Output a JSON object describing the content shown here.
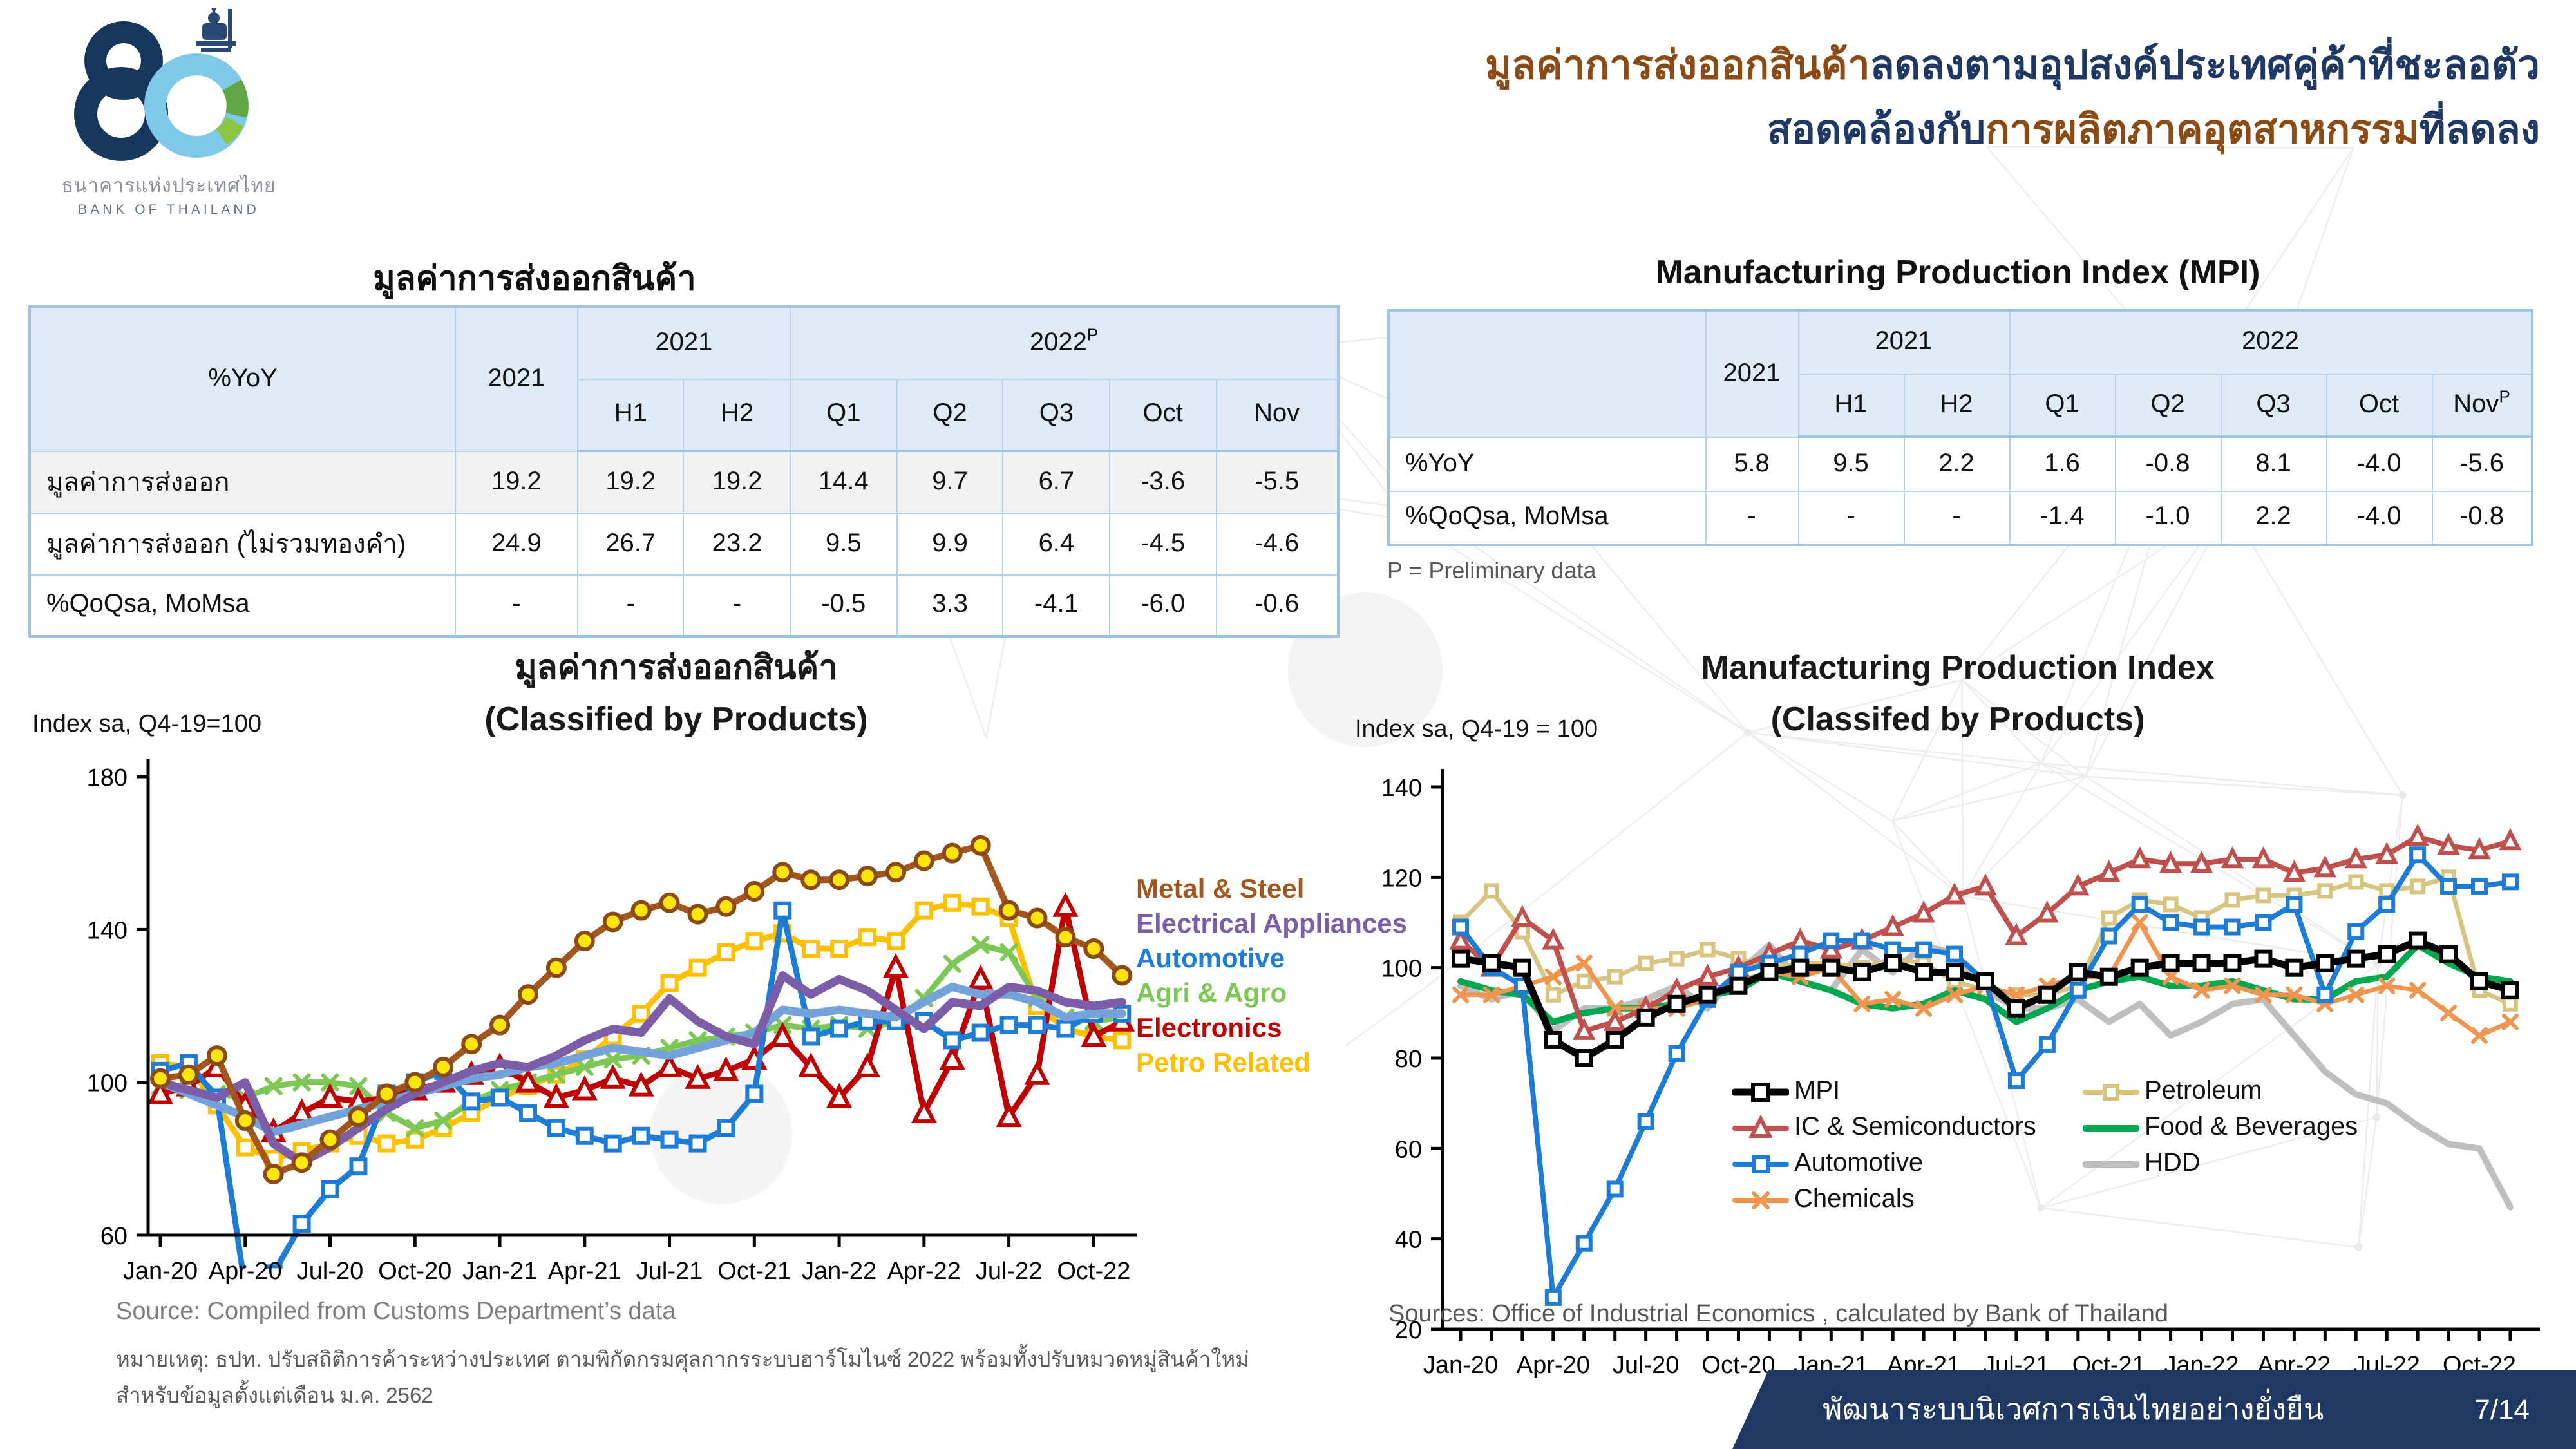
{
  "logo": {
    "name_th": "ธนาคารแห่งประเทศไทย",
    "name_en": "BANK OF THAILAND",
    "anniversary_number": "80",
    "colors": {
      "navy": "#16365C",
      "light_blue": "#7EC8E8",
      "green": "#61A744"
    }
  },
  "heading": {
    "line1_brown": "มูลค่าการส่งออกสินค้า",
    "line1_navy": "ลดลงตามอุปสงค์ประเทศคู่ค้าที่ชะลอตัว",
    "line2_navy_a": "สอดคล้องกับ",
    "line2_brown": "การผลิตภาคอุตสาหกรรม",
    "line2_navy_b": "ที่ลดลง",
    "brown": "#8C4A14",
    "navy": "#1F3864"
  },
  "left_table": {
    "title": "มูลค่าการส่งออกสินค้า",
    "corner_label": "%YoY",
    "year_col": "2021",
    "group1": {
      "label": "2021",
      "sup": ""
    },
    "group2": {
      "label": "2022",
      "sup": "P"
    },
    "sub_cols": [
      "H1",
      "H2",
      "Q1",
      "Q2",
      "Q3",
      "Oct",
      "Nov"
    ],
    "sub_sups": [
      "",
      "",
      "",
      "",
      "",
      "",
      ""
    ],
    "rows": [
      {
        "label": "มูลค่าการส่งออก",
        "shaded": true,
        "values": [
          "19.2",
          "19.2",
          "19.2",
          "14.4",
          "9.7",
          "6.7",
          "-3.6",
          "-5.5"
        ]
      },
      {
        "label": "มูลค่าการส่งออก (ไม่รวมทองคำ)",
        "shaded": false,
        "values": [
          "24.9",
          "26.7",
          "23.2",
          "9.5",
          "9.9",
          "6.4",
          "-4.5",
          "-4.6"
        ]
      },
      {
        "label": "%QoQsa, MoMsa",
        "shaded": false,
        "values": [
          "-",
          "-",
          "-",
          "-0.5",
          "3.3",
          "-4.1",
          "-6.0",
          "-0.6"
        ]
      }
    ]
  },
  "right_table": {
    "title": "Manufacturing Production Index (MPI)",
    "corner_label": "",
    "year_col": "2021",
    "group1": {
      "label": "2021",
      "sup": ""
    },
    "group2": {
      "label": "2022",
      "sup": ""
    },
    "sub_cols": [
      "H1",
      "H2",
      "Q1",
      "Q2",
      "Q3",
      "Oct",
      "Nov"
    ],
    "sub_sups": [
      "",
      "",
      "",
      "",
      "",
      "",
      "P"
    ],
    "rows": [
      {
        "label": "%YoY",
        "shaded": false,
        "values": [
          "5.8",
          "9.5",
          "2.2",
          "1.6",
          "-0.8",
          "8.1",
          "-4.0",
          "-5.6"
        ]
      },
      {
        "label": "%QoQsa, MoMsa",
        "shaded": false,
        "values": [
          "-",
          "-",
          "-",
          "-1.4",
          "-1.0",
          "2.2",
          "-4.0",
          "-0.8"
        ]
      }
    ],
    "note": "P = Preliminary data"
  },
  "chart_data": [
    {
      "id": "exports_by_product",
      "type": "line",
      "title_line1": "มูลค่าการส่งออกสินค้า",
      "title_line2": "(Classified by Products)",
      "axis_caption": "Index sa, Q4-19=100",
      "ylim": [
        60,
        180
      ],
      "yticks": [
        180,
        140,
        100,
        60
      ],
      "grid": false,
      "legend_position": "right-text",
      "x": [
        "Jan-20",
        "Feb-20",
        "Mar-20",
        "Apr-20",
        "May-20",
        "Jun-20",
        "Jul-20",
        "Aug-20",
        "Sep-20",
        "Oct-20",
        "Nov-20",
        "Dec-20",
        "Jan-21",
        "Feb-21",
        "Mar-21",
        "Apr-21",
        "May-21",
        "Jun-21",
        "Jul-21",
        "Aug-21",
        "Sep-21",
        "Oct-21",
        "Nov-21",
        "Dec-21",
        "Jan-22",
        "Feb-22",
        "Mar-22",
        "Apr-22",
        "May-22",
        "Jun-22",
        "Jul-22",
        "Aug-22",
        "Sep-22",
        "Oct-22",
        "Nov-22"
      ],
      "x_label_every": 3,
      "series": [
        {
          "name": "Petro Related",
          "color": "#FFC000",
          "width": 4.5,
          "marker": "square",
          "marker_fill": "#FFFFFF",
          "marker_size": 11,
          "values": [
            105,
            104,
            94,
            83,
            80,
            82,
            84,
            86,
            84,
            85,
            88,
            92,
            96,
            99,
            102,
            106,
            112,
            118,
            126,
            130,
            134,
            137,
            139,
            135,
            135,
            138,
            137,
            145,
            147,
            146,
            143,
            120,
            114,
            112,
            111
          ]
        },
        {
          "name": "Agri & Agro",
          "color": "#7DC855",
          "width": 4.5,
          "marker": "x",
          "marker_size": 11,
          "values": [
            99,
            98,
            97,
            96,
            99,
            100,
            100,
            99,
            92,
            88,
            90,
            95,
            98,
            100,
            102,
            104,
            106,
            107,
            109,
            111,
            112,
            113,
            115,
            114,
            115,
            114,
            116,
            122,
            131,
            136,
            134,
            122,
            117,
            116,
            117
          ]
        },
        {
          "name": "Electronics",
          "color": "#C00000",
          "width": 4.5,
          "marker": "triangle",
          "marker_fill": "#FFFFFF",
          "marker_size": 13,
          "values": [
            97,
            99,
            104,
            94,
            87,
            92,
            96,
            95,
            96,
            98,
            100,
            102,
            104,
            100,
            96,
            98,
            101,
            99,
            104,
            101,
            103,
            106,
            112,
            104,
            96,
            104,
            130,
            92,
            106,
            127,
            91,
            102,
            146,
            112,
            116
          ]
        },
        {
          "name": "Automotive",
          "color": "#1C7CD6",
          "width": 4.5,
          "marker": "square",
          "marker_fill": "#FFFFFF",
          "marker_size": 11,
          "values": [
            103,
            105,
            96,
            46,
            50,
            63,
            72,
            78,
            97,
            100,
            103,
            95,
            96,
            92,
            88,
            86,
            84,
            86,
            85,
            84,
            88,
            97,
            145,
            112,
            114,
            116,
            116,
            116,
            111,
            113,
            115,
            115,
            114,
            118,
            118
          ]
        },
        {
          "name": "",
          "color": "#74A3DC",
          "width": 6.5,
          "marker": "none",
          "values": [
            100,
            97,
            94,
            91,
            87,
            89,
            91,
            93,
            95,
            97,
            99,
            101,
            102,
            104,
            105,
            107,
            109,
            108,
            107,
            109,
            111,
            113,
            119,
            118,
            119,
            118,
            117,
            121,
            125,
            123,
            123,
            121,
            117,
            118,
            118
          ]
        },
        {
          "name": "Electrical Appliances",
          "color": "#7B5EA7",
          "width": 6.5,
          "marker": "none",
          "values": [
            100,
            98,
            96,
            100,
            84,
            79,
            83,
            88,
            93,
            97,
            100,
            103,
            105,
            104,
            107,
            111,
            114,
            113,
            122,
            116,
            112,
            110,
            128,
            123,
            127,
            124,
            119,
            114,
            121,
            120,
            125,
            124,
            121,
            120,
            121
          ]
        },
        {
          "name": "Metal & Steel",
          "color": "#A3561E",
          "width": 5,
          "marker": "circle",
          "marker_fill": "#FFE60A",
          "marker_stroke": "#8C4A14",
          "marker_size": 13,
          "values": [
            101,
            102,
            107,
            90,
            76,
            79,
            85,
            91,
            97,
            100,
            104,
            110,
            115,
            123,
            130,
            137,
            142,
            145,
            147,
            144,
            146,
            150,
            155,
            153,
            153,
            154,
            155,
            158,
            160,
            162,
            145,
            143,
            138,
            135,
            128
          ]
        }
      ],
      "legend_order": [
        "Metal & Steel",
        "Electrical Appliances",
        "Automotive",
        "Agri & Agro",
        "Electronics",
        "Petro Related"
      ],
      "source": "Source: Compiled from Customs Department’s data",
      "note_line1": "หมายเหตุ: ธปท. ปรับสถิติการค้าระหว่างประเทศ ตามพิกัดกรมศุลกากรระบบฮาร์โมไนซ์ 2022 พร้อมทั้งปรับหมวดหมู่สินค้าใหม่",
      "note_line2": "สำหรับข้อมูลตั้งแต่เดือน ม.ค. 2562"
    },
    {
      "id": "mpi_by_product",
      "type": "line",
      "title_line1": "Manufacturing Production Index",
      "title_line2": "(Classifed by Products)",
      "axis_caption": "Index sa, Q4-19 = 100",
      "ylim": [
        20,
        140
      ],
      "yticks": [
        140,
        120,
        100,
        80,
        60,
        40,
        20
      ],
      "grid": false,
      "legend_position": "inside-bottom",
      "x": [
        "Jan-20",
        "Feb-20",
        "Mar-20",
        "Apr-20",
        "May-20",
        "Jun-20",
        "Jul-20",
        "Aug-20",
        "Sep-20",
        "Oct-20",
        "Nov-20",
        "Dec-20",
        "Jan-21",
        "Feb-21",
        "Mar-21",
        "Apr-21",
        "May-21",
        "Jun-21",
        "Jul-21",
        "Aug-21",
        "Sep-21",
        "Oct-21",
        "Nov-21",
        "Dec-21",
        "Jan-22",
        "Feb-22",
        "Mar-22",
        "Apr-22",
        "May-22",
        "Jun-22",
        "Jul-22",
        "Aug-22",
        "Sep-22",
        "Oct-22",
        "Nov-22"
      ],
      "x_label_every": 3,
      "series": [
        {
          "name": "HDD",
          "color": "#BFBFBF",
          "width": 5,
          "marker": "none",
          "values": [
            96,
            93,
            95,
            86,
            91,
            91,
            93,
            96,
            91,
            99,
            105,
            97,
            95,
            104,
            99,
            105,
            103,
            95,
            91,
            91,
            93,
            88,
            92,
            85,
            88,
            92,
            93,
            85,
            77,
            72,
            70,
            65,
            61,
            60,
            47
          ]
        },
        {
          "name": "Petroleum",
          "color": "#D7C47E",
          "width": 3.5,
          "marker": "square",
          "marker_fill": "#FFFFFF",
          "marker_size": 9,
          "values": [
            110,
            117,
            108,
            94,
            97,
            98,
            101,
            102,
            104,
            102,
            100,
            101,
            101,
            100,
            102,
            101,
            97,
            95,
            94,
            94,
            96,
            111,
            115,
            114,
            111,
            115,
            116,
            116,
            117,
            119,
            117,
            118,
            120,
            95,
            92
          ]
        },
        {
          "name": "Food & Beverages",
          "color": "#00A950",
          "width": 5,
          "marker": "none",
          "values": [
            97,
            95,
            94,
            88,
            90,
            91,
            91,
            92,
            94,
            95,
            99,
            97,
            95,
            92,
            91,
            92,
            95,
            93,
            88,
            91,
            95,
            97,
            98,
            96,
            96,
            97,
            95,
            93,
            93,
            97,
            98,
            105,
            101,
            98,
            97
          ]
        },
        {
          "name": "Chemicals",
          "color": "#F0954F",
          "width": 3.5,
          "marker": "x",
          "marker_size": 10,
          "values": [
            94,
            94,
            96,
            98,
            101,
            91,
            91,
            91,
            93,
            97,
            99,
            98,
            100,
            92,
            93,
            91,
            94,
            96,
            94,
            96,
            98,
            98,
            110,
            98,
            95,
            96,
            94,
            94,
            92,
            94,
            96,
            95,
            90,
            85,
            88
          ]
        },
        {
          "name": "IC & Semiconductors",
          "color": "#C0504D",
          "width": 4,
          "marker": "triangle",
          "marker_fill": "#FFFFFF",
          "marker_size": 11,
          "values": [
            106,
            100,
            111,
            106,
            86,
            88,
            91,
            95,
            98,
            100,
            103,
            106,
            104,
            106,
            109,
            112,
            116,
            118,
            107,
            112,
            118,
            121,
            124,
            123,
            123,
            124,
            124,
            121,
            122,
            124,
            125,
            129,
            127,
            126,
            128
          ]
        },
        {
          "name": "Automotive",
          "color": "#1C7CD6",
          "width": 4,
          "marker": "square",
          "marker_fill": "#FFFFFF",
          "marker_size": 10,
          "values": [
            109,
            100,
            96,
            27,
            39,
            51,
            66,
            81,
            93,
            99,
            101,
            103,
            106,
            106,
            104,
            104,
            103,
            97,
            75,
            83,
            95,
            107,
            114,
            110,
            109,
            109,
            110,
            114,
            94,
            108,
            114,
            125,
            118,
            118,
            119
          ]
        },
        {
          "name": "MPI",
          "color": "#000000",
          "width": 5.5,
          "marker": "square",
          "marker_fill": "#FFFFFF",
          "marker_size": 11,
          "values": [
            102,
            101,
            100,
            84,
            80,
            84,
            89,
            92,
            94,
            96,
            99,
            100,
            100,
            99,
            101,
            99,
            99,
            97,
            91,
            94,
            99,
            98,
            100,
            101,
            101,
            101,
            102,
            100,
            101,
            102,
            103,
            106,
            103,
            97,
            95
          ]
        }
      ],
      "legend_cols": [
        [
          "MPI",
          "IC & Semiconductors",
          "Automotive",
          "Chemicals"
        ],
        [
          "Petroleum",
          "Food & Beverages",
          "HDD"
        ]
      ],
      "source": "Sources: Office of Industrial Economics , calculated by Bank of Thailand"
    }
  ],
  "footer": {
    "text": "พัฒนาระบบนิเวศการเงินไทยอย่างยั่งยืน",
    "page": "7/14",
    "color": "#1F3864"
  }
}
